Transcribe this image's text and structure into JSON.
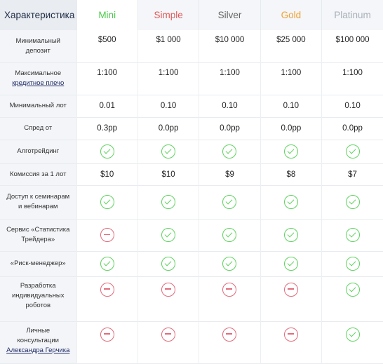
{
  "header": {
    "feature_title": "Характеристика",
    "plans": [
      {
        "name": "Mini",
        "color": "#4cc94c"
      },
      {
        "name": "Simple",
        "color": "#e05a5a"
      },
      {
        "name": "Silver",
        "color": "#666666"
      },
      {
        "name": "Gold",
        "color": "#f0a030"
      },
      {
        "name": "Platinum",
        "color": "#a8b0b8"
      }
    ]
  },
  "rows": [
    {
      "label": [
        "Минимальный",
        "депозит"
      ],
      "values": [
        "$500",
        "$1 000",
        "$10 000",
        "$25 000",
        "$100 000"
      ]
    },
    {
      "label": [
        "Максимальное"
      ],
      "link": "кредитное плечо",
      "values": [
        "1:100",
        "1:100",
        "1:100",
        "1:100",
        "1:100"
      ]
    },
    {
      "label": [
        "Минимальный лот"
      ],
      "values": [
        "0.01",
        "0.10",
        "0.10",
        "0.10",
        "0.10"
      ]
    },
    {
      "label": [
        "Спред от"
      ],
      "values": [
        "0.3pp",
        "0.0pp",
        "0.0pp",
        "0.0pp",
        "0.0pp"
      ]
    },
    {
      "label": [
        "Алготрейдинг"
      ],
      "icons": [
        "check-icon",
        "check-icon",
        "check-icon",
        "check-icon",
        "check-icon"
      ]
    },
    {
      "label": [
        "Комиссия за 1 лот"
      ],
      "values": [
        "$10",
        "$10",
        "$9",
        "$8",
        "$7"
      ]
    },
    {
      "label": [
        "Доступ к семинарам",
        "и вебинарам"
      ],
      "icons": [
        "check-icon",
        "check-icon",
        "check-icon",
        "check-icon",
        "check-icon"
      ]
    },
    {
      "label": [
        "Сервис «Статистика",
        "Трейдера»"
      ],
      "icons": [
        "minus-icon",
        "check-icon",
        "check-icon",
        "check-icon",
        "check-icon"
      ]
    },
    {
      "label": [
        "«Риск-менеджер»"
      ],
      "icons": [
        "check-icon",
        "check-icon",
        "check-icon",
        "check-icon",
        "check-icon"
      ]
    },
    {
      "label": [
        "Разработка",
        "индивидуальных",
        "роботов"
      ],
      "icons": [
        "minus-icon",
        "minus-icon",
        "minus-icon",
        "minus-icon",
        "check-icon"
      ]
    },
    {
      "label": [
        "Личные",
        "консультации"
      ],
      "link": "Александра Герчика",
      "icons": [
        "minus-icon",
        "minus-icon",
        "minus-icon",
        "minus-icon",
        "check-icon"
      ]
    }
  ]
}
